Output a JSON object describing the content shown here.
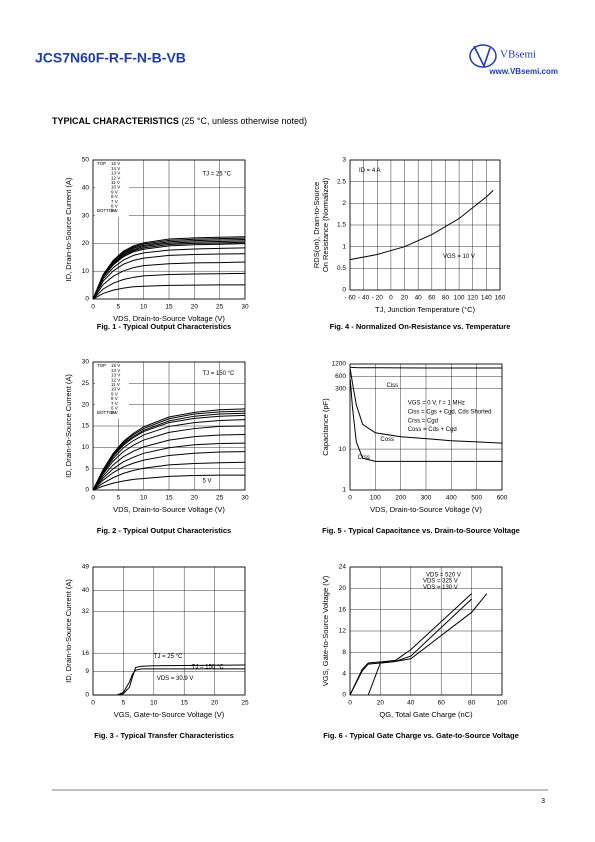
{
  "header": {
    "part": "JCS7N60F-R-F-N-B-VB",
    "logo": "VBsemi",
    "url": "www.VBsemi.com"
  },
  "section": {
    "title": "TYPICAL CHARACTERISTICS",
    "note": " (25 °C, unless otherwise noted)"
  },
  "chart_data": [
    {
      "type": "line",
      "caption": "Fig. 1 - Typical Output Characteristics",
      "xlabel": "VDS, Drain-to-Source Voltage (V)",
      "ylabel": "ID, Drain-to-Source Current (A)",
      "x": [
        0,
        2,
        4,
        6,
        8,
        10,
        15,
        20,
        25,
        30
      ],
      "xlim": [
        0,
        30
      ],
      "ylim": [
        0,
        50
      ],
      "xticks": [
        0,
        5,
        10,
        15,
        20,
        25,
        30
      ],
      "yticks": [
        0,
        10,
        20,
        30,
        40,
        50
      ],
      "grid": true,
      "color": "#000000",
      "legend_top": "TOP",
      "legend_bottom": "BOTTOM",
      "annotations": [
        "TJ = 25 °C"
      ],
      "series": [
        {
          "name": "15 V",
          "values": [
            0,
            8.8,
            13.9,
            17.2,
            19.1,
            20.2,
            21.6,
            22,
            22.2,
            22.4
          ]
        },
        {
          "name": "14 V",
          "values": [
            0,
            8.6,
            13.5,
            16.8,
            18.7,
            19.8,
            21.1,
            21.5,
            21.7,
            21.9
          ]
        },
        {
          "name": "13 V",
          "values": [
            0,
            8.4,
            13.2,
            16.4,
            18.3,
            19.3,
            20.6,
            21,
            21.2,
            21.4
          ]
        },
        {
          "name": "12 V",
          "values": [
            0,
            8.2,
            12.9,
            16,
            17.8,
            18.9,
            20.1,
            20.5,
            20.7,
            20.9
          ]
        },
        {
          "name": "11 V",
          "values": [
            0,
            8,
            12.6,
            15.6,
            17.4,
            18.4,
            19.6,
            20,
            20.2,
            20.4
          ]
        },
        {
          "name": "10 V",
          "values": [
            0,
            7.8,
            12.3,
            15.2,
            17,
            17.9,
            19.1,
            19.5,
            19.7,
            19.9
          ]
        },
        {
          "name": "9 V",
          "values": [
            0,
            7.2,
            11.3,
            14,
            15.7,
            16.6,
            17.6,
            18,
            18.2,
            18.4
          ]
        },
        {
          "name": "8 V",
          "values": [
            0,
            6.4,
            10.1,
            12.5,
            13.9,
            14.7,
            15.7,
            16,
            16.2,
            16.3
          ]
        },
        {
          "name": "7 V",
          "values": [
            0,
            5.2,
            8.2,
            10.1,
            11.3,
            12,
            12.7,
            13,
            13.1,
            13.3
          ]
        },
        {
          "name": "6 V",
          "values": [
            0,
            3.6,
            5.7,
            7,
            7.8,
            8.3,
            8.8,
            9,
            9.1,
            9.2
          ]
        },
        {
          "name": "5 V",
          "values": [
            0,
            2,
            3.2,
            3.9,
            4.4,
            4.6,
            4.9,
            5,
            5.1,
            5.1
          ]
        }
      ]
    },
    {
      "type": "line",
      "caption": "Fig. 2 - Typical Output Characteristics",
      "xlabel": "VDS, Drain-to-Source Voltage (V)",
      "ylabel": "ID, Drain-to-Source Current (A)",
      "x": [
        0,
        2,
        4,
        6,
        8,
        10,
        15,
        20,
        25,
        30
      ],
      "xlim": [
        0,
        30
      ],
      "ylim": [
        0,
        30
      ],
      "xticks": [
        0,
        5,
        10,
        15,
        20,
        25,
        30
      ],
      "yticks": [
        0,
        5,
        10,
        15,
        20,
        25,
        30
      ],
      "grid": true,
      "color": "#000000",
      "legend_top": "TOP",
      "legend_bottom": "BOTTOM",
      "annotations": [
        "TJ = 150 °C",
        "5 V"
      ],
      "series": [
        {
          "name": "15 V",
          "values": [
            0,
            4.8,
            8.6,
            11.4,
            13.3,
            14.8,
            17.1,
            18.2,
            18.8,
            19
          ]
        },
        {
          "name": "14 V",
          "values": [
            0,
            4.6,
            8.3,
            11.1,
            13,
            14.4,
            16.7,
            17.8,
            18.3,
            18.5
          ]
        },
        {
          "name": "13 V",
          "values": [
            0,
            4.5,
            8.1,
            10.8,
            12.6,
            14,
            16.2,
            17.3,
            17.8,
            18
          ]
        },
        {
          "name": "12 V",
          "values": [
            0,
            4.4,
            7.9,
            10.5,
            12.3,
            13.7,
            15.8,
            16.8,
            17.3,
            17.5
          ]
        },
        {
          "name": "11 V",
          "values": [
            0,
            4.1,
            7.4,
            9.9,
            11.6,
            12.9,
            14.9,
            15.8,
            16.3,
            16.5
          ]
        },
        {
          "name": "10 V",
          "values": [
            0,
            3.8,
            6.8,
            9,
            10.5,
            11.7,
            13.5,
            14.4,
            14.9,
            15
          ]
        },
        {
          "name": "9 V",
          "values": [
            0,
            3.3,
            5.9,
            7.8,
            9.1,
            10.1,
            11.7,
            12.5,
            12.9,
            13
          ]
        },
        {
          "name": "8 V",
          "values": [
            0,
            2.8,
            5,
            6.6,
            7.7,
            8.6,
            9.9,
            10.6,
            10.9,
            11
          ]
        },
        {
          "name": "7 V",
          "values": [
            0,
            2.3,
            4.1,
            5.4,
            6.3,
            7,
            8.1,
            8.6,
            8.9,
            9
          ]
        },
        {
          "name": "6 V",
          "values": [
            0,
            1.6,
            2.9,
            3.9,
            4.6,
            5.1,
            5.9,
            6.2,
            6.4,
            6.5
          ]
        },
        {
          "name": "5 V",
          "values": [
            0,
            0.9,
            1.6,
            2.1,
            2.5,
            2.7,
            3.2,
            3.4,
            3.5,
            3.5
          ]
        }
      ]
    },
    {
      "type": "line",
      "caption": "Fig. 3 - Typical Transfer Characteristics",
      "xlabel": "VGS, Gate-to-Source Voltage (V)",
      "ylabel": "ID, Drain-to-Source Current (A)",
      "x": [
        0,
        4,
        5,
        6,
        6.5,
        7,
        8,
        10,
        15,
        20,
        25
      ],
      "xlim": [
        0,
        25
      ],
      "ylim": [
        0,
        49
      ],
      "xticks": [
        0,
        5,
        10,
        15,
        20,
        25
      ],
      "yticks": [
        0,
        9,
        16,
        32,
        40,
        49
      ],
      "grid": true,
      "color": "#000000",
      "annotations": [
        "VDS = 30.9 V"
      ],
      "series": [
        {
          "name": "TJ = 25 °C",
          "values": [
            0,
            0,
            0.5,
            3,
            7,
            10.5,
            11,
            11.2,
            11.3,
            11.4,
            11.5
          ]
        },
        {
          "name": "TJ = 150 °C",
          "values": [
            0,
            0,
            1,
            5,
            8,
            9.5,
            10,
            10,
            10,
            10,
            10
          ]
        }
      ]
    },
    {
      "type": "line",
      "caption": "Fig. 4 - Normalized On-Resistance vs. Temperature",
      "xlabel": "TJ, Junction Temperature (°C)",
      "ylabel": [
        "RDS(on), Drain-to-Source",
        "On Resistance (Normalized)"
      ],
      "x": [
        -60,
        -20,
        20,
        60,
        100,
        140,
        150
      ],
      "xlim": [
        -60,
        160
      ],
      "ylim": [
        0,
        3
      ],
      "xticks": [
        {
          "value": -60,
          "label": "- 60"
        },
        {
          "value": -40,
          "label": "- 40"
        },
        {
          "value": -20,
          "label": "- 20"
        },
        0,
        20,
        40,
        60,
        80,
        100,
        120,
        140,
        160
      ],
      "yticks": [
        0,
        0.5,
        1,
        1.5,
        2,
        2.5,
        3
      ],
      "grid": true,
      "color": "#000000",
      "annotations": [
        "ID = 4 A",
        "VGS = 10 V"
      ],
      "series": [
        {
          "values": [
            0.7,
            0.82,
            1.0,
            1.28,
            1.65,
            2.15,
            2.3
          ]
        }
      ]
    },
    {
      "type": "line",
      "caption": "Fig. 5 - Typical Capacitance vs. Drain-to-Source Voltage",
      "xlabel": "VDS, Drain-to-Source Voltage (V)",
      "ylabel": "Capacitance (pF)",
      "x": [
        1,
        10,
        25,
        50,
        100,
        200,
        300,
        400,
        500,
        600
      ],
      "xlim": [
        0,
        600
      ],
      "ylim": [
        1,
        1200
      ],
      "log_y": true,
      "xticks": [
        0,
        100,
        200,
        300,
        400,
        500,
        600
      ],
      "yticks": [
        1,
        10,
        300,
        600,
        1200
      ],
      "grid": true,
      "color": "#000000",
      "annotations": [
        "VGS = 0 V, f = 1 MHz",
        "Ciss = Cgs + Cgd, Cds Shorted",
        "Crss = Cgd",
        "Coss = Cds + Cgd"
      ],
      "series": [
        {
          "name": "Ciss",
          "values": [
            1000,
            990,
            980,
            975,
            970,
            965,
            960,
            960,
            955,
            955
          ]
        },
        {
          "name": "Coss",
          "values": [
            900,
            400,
            120,
            40,
            25,
            20,
            18,
            16,
            15,
            14
          ]
        },
        {
          "name": "Crss",
          "values": [
            500,
            100,
            15,
            6,
            5,
            5,
            5,
            5,
            5,
            5
          ]
        }
      ]
    },
    {
      "type": "line",
      "caption": "Fig. 6 - Typical Gate Charge vs. Gate-to-Source Voltage",
      "xlabel": "QG, Total Gate Charge (nC)",
      "ylabel": "VGS, Gate-to-Source Voltage (V)",
      "x": [
        0,
        8,
        12,
        20,
        30,
        40,
        80,
        90
      ],
      "xlim": [
        0,
        100
      ],
      "ylim": [
        0,
        24
      ],
      "xticks": [
        0,
        20,
        40,
        60,
        80,
        100
      ],
      "yticks": [
        0,
        4,
        8,
        12,
        16,
        20,
        24
      ],
      "grid": true,
      "color": "#000000",
      "series": [
        {
          "name": "VDS = 520 V",
          "values": [
            null,
            null,
            0,
            6,
            6.3,
            6.8,
            15.5,
            19
          ]
        },
        {
          "name": "VDS = 325 V",
          "values": [
            0,
            4.5,
            5.8,
            6,
            6.3,
            7.3,
            18,
            null
          ]
        },
        {
          "name": "VDS = 130 V",
          "values": [
            0,
            4.8,
            6,
            6.2,
            6.5,
            8.5,
            19,
            null
          ]
        }
      ]
    }
  ],
  "footer": {
    "page": "3"
  }
}
